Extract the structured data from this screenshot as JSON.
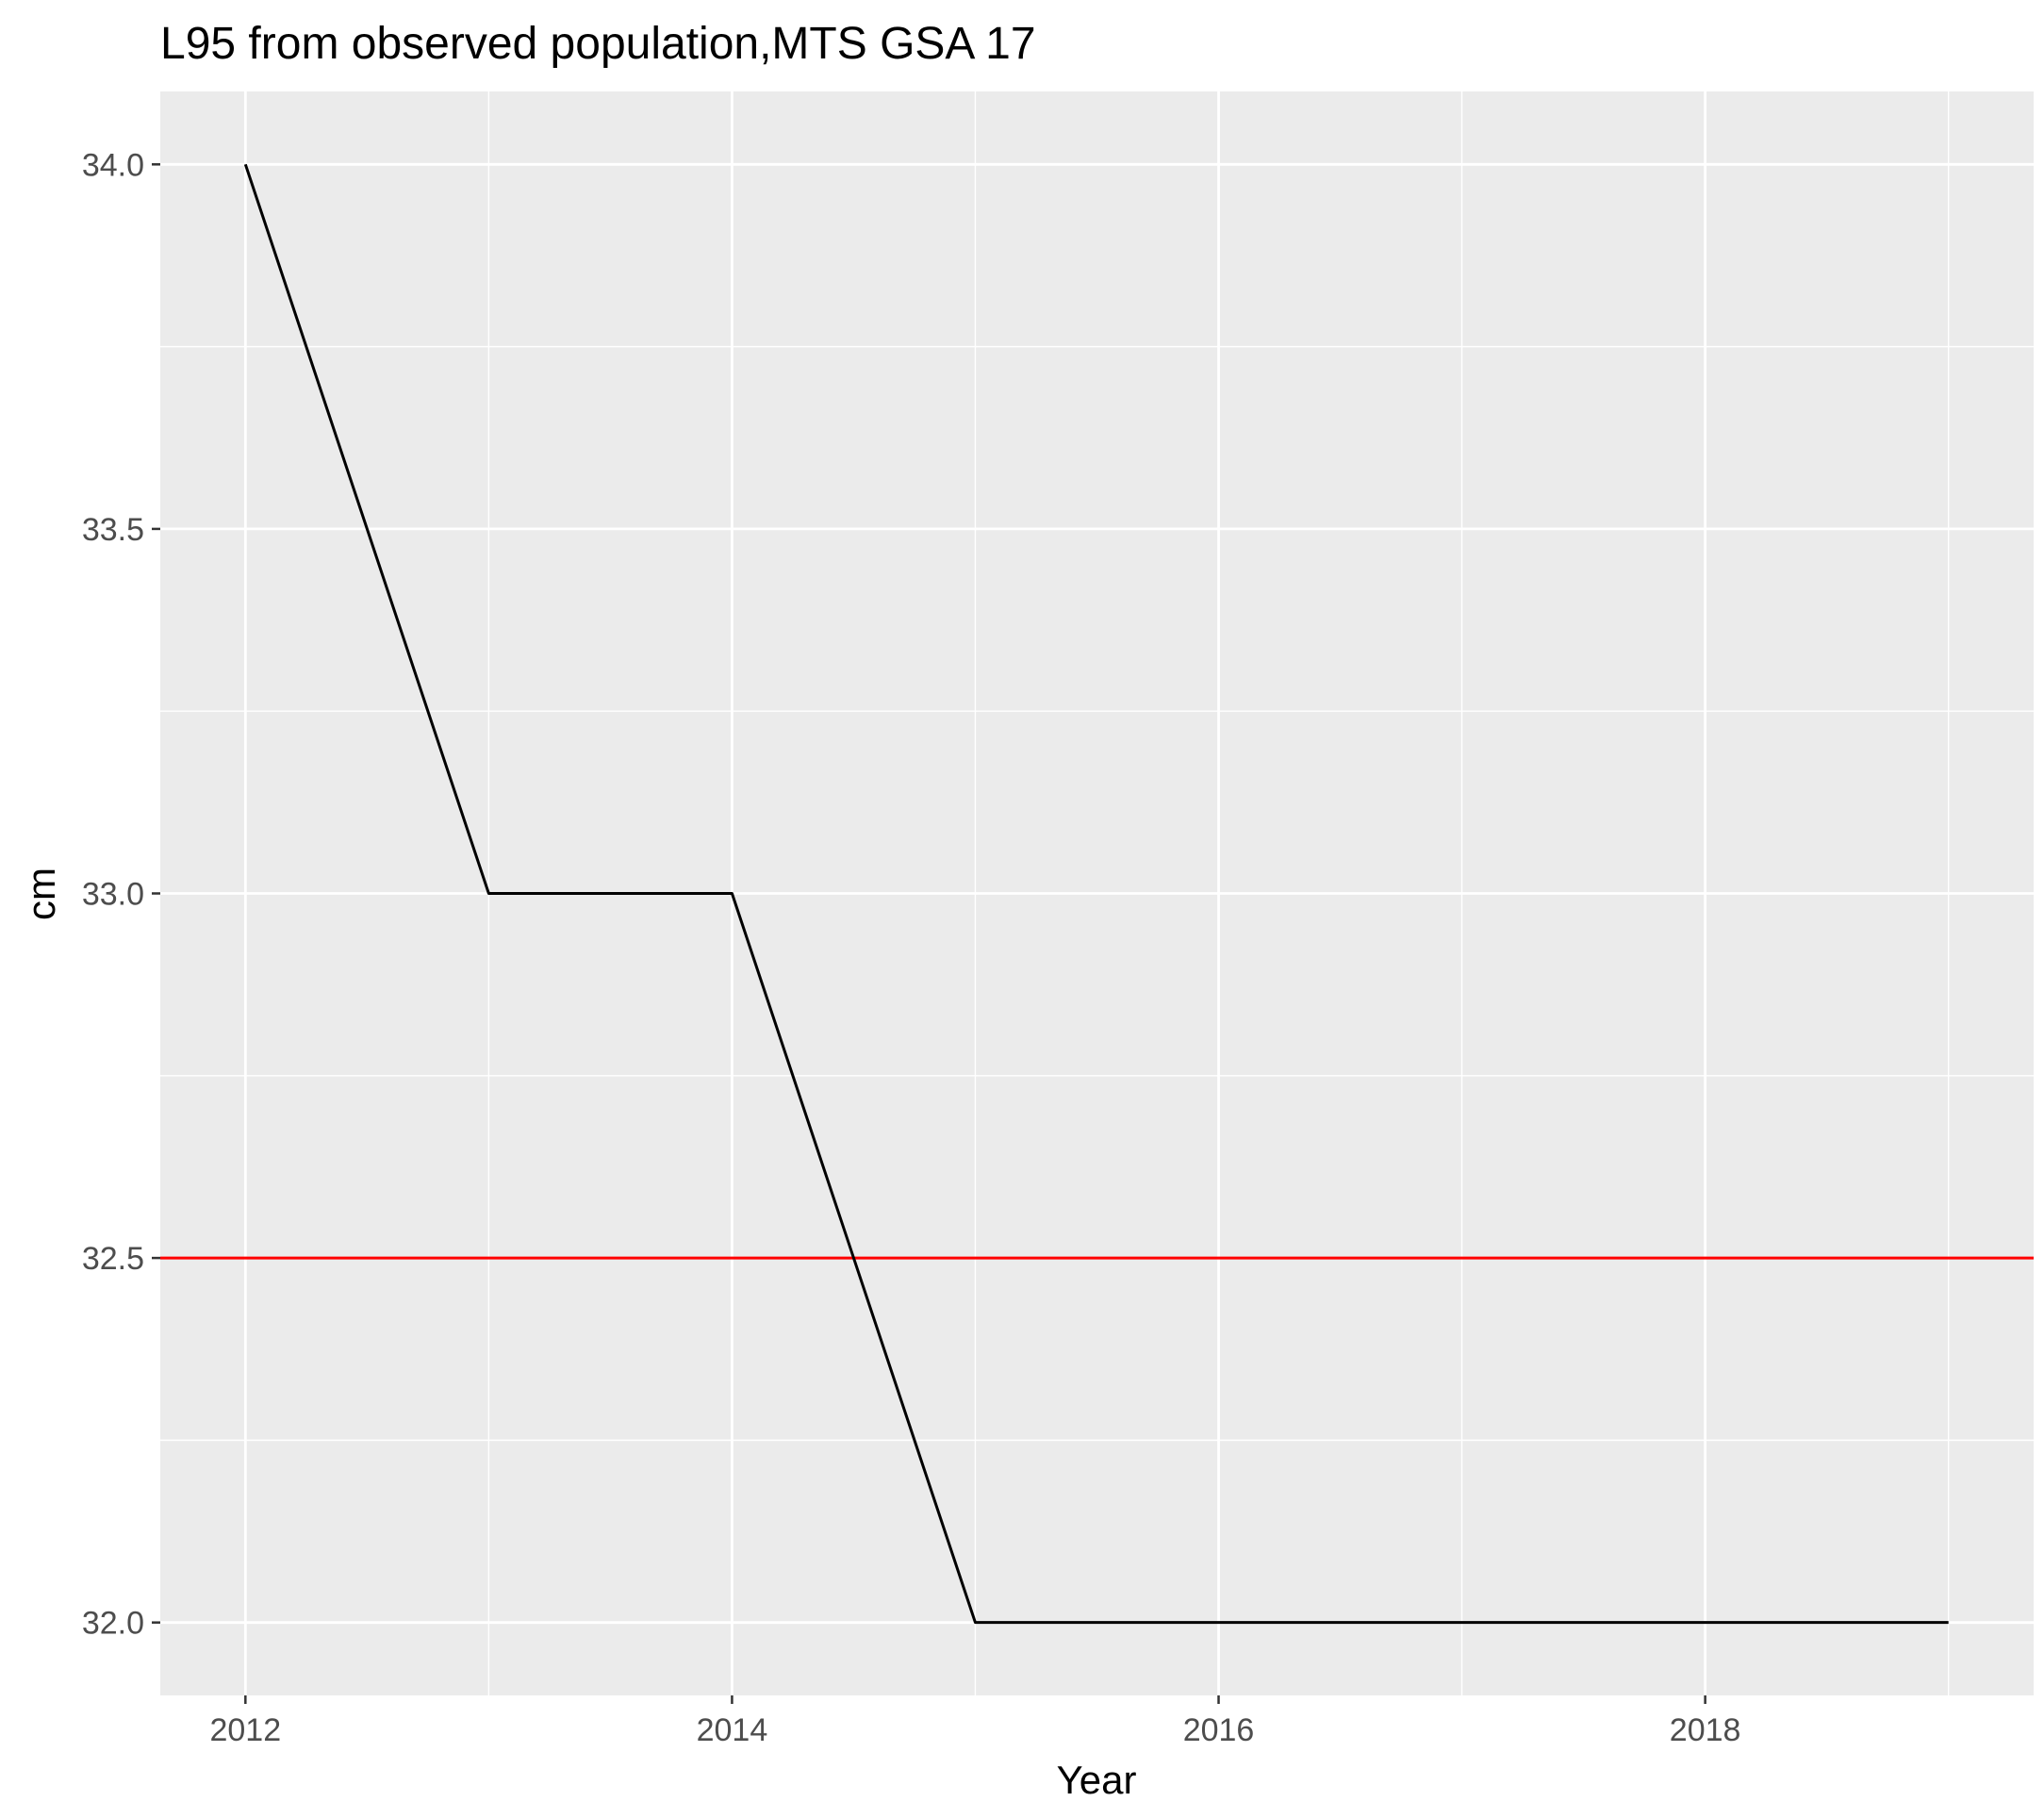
{
  "chart_data": {
    "type": "line",
    "title": "L95 from observed population,MTS GSA 17",
    "xlabel": "Year",
    "ylabel": "cm",
    "xlim": [
      2011.65,
      2019.35
    ],
    "ylim": [
      31.9,
      34.1
    ],
    "x_ticks": [
      2012,
      2014,
      2016,
      2018
    ],
    "x_tick_labels": [
      "2012",
      "2014",
      "2016",
      "2018"
    ],
    "x_minor_ticks": [
      2013,
      2015,
      2017,
      2019
    ],
    "y_ticks": [
      32.0,
      32.5,
      33.0,
      33.5,
      34.0
    ],
    "y_tick_labels": [
      "32.0",
      "32.5",
      "33.0",
      "33.5",
      "34.0"
    ],
    "y_minor_ticks": [
      32.25,
      32.75,
      33.25,
      33.75
    ],
    "grid": true,
    "legend": "none",
    "panel_background": "#ebebeb",
    "series": [
      {
        "x": [
          2012,
          2013,
          2014,
          2015,
          2016,
          2017,
          2018,
          2019
        ],
        "y": [
          34.0,
          33.0,
          33.0,
          32.0,
          32.0,
          32.0,
          32.0,
          32.0
        ],
        "color": "#000000"
      }
    ],
    "reference_lines": [
      {
        "orientation": "horizontal",
        "y": 32.5,
        "color": "#ff0000"
      }
    ]
  }
}
